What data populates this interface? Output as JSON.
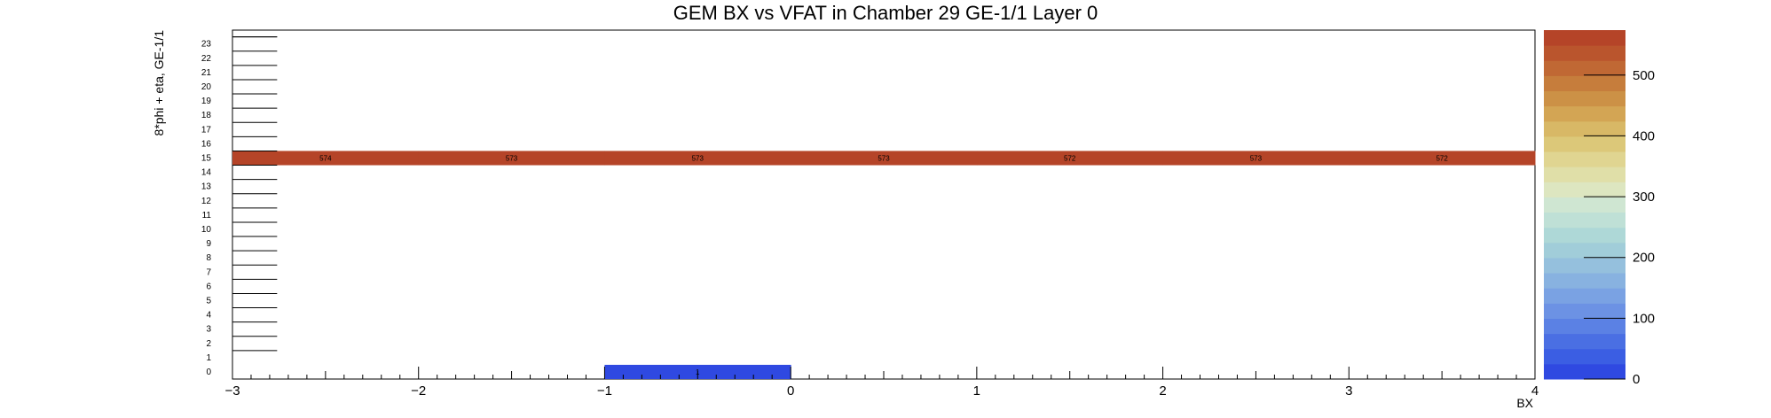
{
  "chart_data": {
    "type": "heatmap",
    "title": "GEM BX vs VFAT in Chamber 29 GE-1/1 Layer 0",
    "xlabel": "BX",
    "ylabel": "8*phi + eta, GE-1/1",
    "xlim": [
      -3,
      4
    ],
    "ylim": [
      0,
      24
    ],
    "x_ticks": [
      -3,
      -2,
      -1,
      0,
      1,
      2,
      3,
      4
    ],
    "x_tick_labels": [
      "−3",
      "−2",
      "−1",
      "0",
      "1",
      "2",
      "3",
      "4"
    ],
    "y_tick_labels": [
      "0",
      "1",
      "2",
      "3",
      "4",
      "5",
      "6",
      "7",
      "8",
      "9",
      "10",
      "11",
      "12",
      "13",
      "14",
      "15",
      "16",
      "17",
      "18",
      "19",
      "20",
      "21",
      "22",
      "23"
    ],
    "cells": [
      {
        "x0": -3,
        "x1": 4,
        "y": 15,
        "values": [
          574,
          573,
          573,
          573,
          572,
          573,
          572
        ],
        "labels": [
          "574",
          "573",
          "573",
          "573",
          "572",
          "573",
          "572"
        ]
      },
      {
        "x0": -1,
        "x1": 0,
        "y": 0,
        "values": [
          1
        ],
        "labels": [
          "1"
        ]
      }
    ],
    "zlim": [
      0,
      574
    ],
    "z_ticks": [
      0,
      100,
      200,
      300,
      400,
      500
    ],
    "z_tick_labels": [
      "0",
      "100",
      "200",
      "300",
      "400",
      "500"
    ],
    "palette": [
      "#2f49e1",
      "#3b5ee3",
      "#4a6fe3",
      "#5b81e4",
      "#6c92e4",
      "#7aa2e3",
      "#88b2e0",
      "#95c0dd",
      "#a1cdd9",
      "#aed8d7",
      "#bfe0d6",
      "#cfe6d2",
      "#dde6c0",
      "#e0dfa8",
      "#e0d591",
      "#dcc879",
      "#d8b866",
      "#d3a554",
      "#cc9146",
      "#c67d3c",
      "#c06834",
      "#ba552d",
      "#b54428"
    ]
  }
}
